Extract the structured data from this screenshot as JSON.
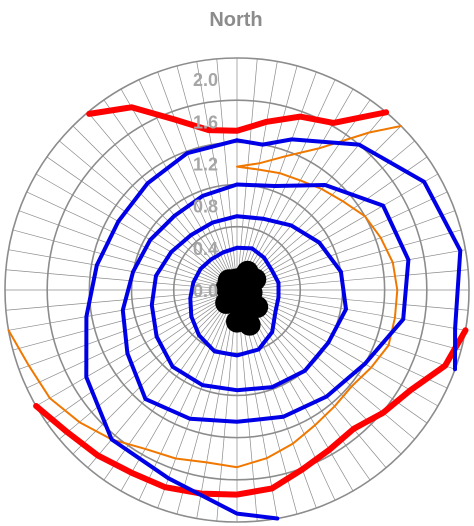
{
  "chart_data": {
    "type": "polar-contour",
    "direction_label": "North",
    "radial_axis": {
      "ticks": [
        0.0,
        0.4,
        0.8,
        1.2,
        1.6,
        2.0
      ],
      "tick_labels": [
        "0.0",
        "0.4",
        "0.8",
        "1.2",
        "1.6",
        "2.0"
      ],
      "gridline_radii": [
        0.2,
        0.6,
        1.0,
        1.4,
        1.8,
        2.2
      ],
      "range": [
        0.0,
        2.2
      ]
    },
    "angular_spokes": 72,
    "grid": true,
    "colors": {
      "grid": "#8c8c8c",
      "red": "#ff0000",
      "orange": "#f07800",
      "blue": "#0000e6",
      "black": "#000000"
    },
    "series": [
      {
        "color": "red",
        "width": 6,
        "points": [
          [
            -120,
            2.2
          ],
          [
            -130,
            2.1
          ],
          [
            -140,
            2.05
          ],
          [
            -150,
            2.0
          ],
          [
            -160,
            1.99
          ],
          [
            -170,
            1.96
          ],
          [
            -180,
            1.94
          ],
          [
            -190,
            1.91
          ],
          [
            -200,
            1.81
          ],
          [
            -210,
            1.75
          ],
          [
            -220,
            1.72
          ],
          [
            -230,
            1.81
          ],
          [
            -240,
            1.9
          ],
          [
            -250,
            2.1
          ],
          [
            -260,
            2.2
          ]
        ]
      },
      {
        "color": "red",
        "width": 6,
        "points": [
          [
            -40,
            2.18
          ],
          [
            -30,
            2.0
          ],
          [
            -20,
            1.72
          ],
          [
            -10,
            1.54
          ],
          [
            0,
            1.51
          ],
          [
            10,
            1.62
          ],
          [
            20,
            1.75
          ],
          [
            30,
            1.83
          ],
          [
            40,
            2.2
          ]
        ]
      },
      {
        "color": "orange",
        "width": 2,
        "points": [
          [
            -100,
            2.2
          ],
          [
            -110,
            2.1
          ],
          [
            -120,
            2.05
          ],
          [
            -130,
            1.95
          ],
          [
            -140,
            1.85
          ],
          [
            -150,
            1.74
          ],
          [
            -160,
            1.7
          ],
          [
            -170,
            1.66
          ],
          [
            -180,
            1.68
          ],
          [
            -190,
            1.62
          ],
          [
            -200,
            1.55
          ],
          [
            -210,
            1.48
          ],
          [
            -220,
            1.44
          ],
          [
            -230,
            1.42
          ],
          [
            -240,
            1.47
          ],
          [
            -250,
            1.53
          ],
          [
            -260,
            1.52
          ],
          [
            -270,
            1.52
          ],
          [
            -280,
            1.5
          ],
          [
            -290,
            1.45
          ],
          [
            -300,
            1.4
          ],
          [
            -310,
            1.31
          ],
          [
            -320,
            1.25
          ],
          [
            -330,
            1.2
          ],
          [
            -340,
            1.18
          ],
          [
            -350,
            1.16
          ],
          [
            0,
            1.17
          ],
          [
            10,
            1.22
          ],
          [
            20,
            1.35
          ],
          [
            30,
            1.55
          ],
          [
            40,
            1.95
          ],
          [
            45,
            2.2
          ]
        ]
      },
      {
        "color": "blue",
        "width": 4,
        "points": [
          [
            0,
            0.4
          ],
          [
            20,
            0.42
          ],
          [
            40,
            0.4
          ],
          [
            60,
            0.38
          ],
          [
            80,
            0.4
          ],
          [
            100,
            0.4
          ],
          [
            120,
            0.42
          ],
          [
            140,
            0.52
          ],
          [
            160,
            0.6
          ],
          [
            180,
            0.62
          ],
          [
            200,
            0.62
          ],
          [
            220,
            0.56
          ],
          [
            240,
            0.5
          ],
          [
            260,
            0.45
          ],
          [
            280,
            0.42
          ],
          [
            300,
            0.4
          ],
          [
            320,
            0.38
          ],
          [
            340,
            0.38
          ],
          [
            360,
            0.4
          ]
        ]
      },
      {
        "color": "blue",
        "width": 4,
        "points": [
          [
            0,
            0.7
          ],
          [
            20,
            0.72
          ],
          [
            40,
            0.8
          ],
          [
            60,
            0.9
          ],
          [
            80,
            1.0
          ],
          [
            100,
            1.05
          ],
          [
            120,
            1.0
          ],
          [
            140,
            1.0
          ],
          [
            160,
            0.98
          ],
          [
            180,
            0.95
          ],
          [
            200,
            0.96
          ],
          [
            220,
            0.95
          ],
          [
            240,
            0.88
          ],
          [
            260,
            0.82
          ],
          [
            280,
            0.78
          ],
          [
            300,
            0.72
          ],
          [
            320,
            0.68
          ],
          [
            340,
            0.68
          ],
          [
            360,
            0.7
          ]
        ]
      },
      {
        "color": "blue",
        "width": 4,
        "points": [
          [
            0,
            1.0
          ],
          [
            20,
            1.05
          ],
          [
            40,
            1.3
          ],
          [
            60,
            1.6
          ],
          [
            80,
            1.65
          ],
          [
            100,
            1.6
          ],
          [
            120,
            1.4
          ],
          [
            140,
            1.32
          ],
          [
            160,
            1.28
          ],
          [
            180,
            1.25
          ],
          [
            200,
            1.3
          ],
          [
            220,
            1.35
          ],
          [
            240,
            1.2
          ],
          [
            260,
            1.1
          ],
          [
            280,
            1.0
          ],
          [
            300,
            0.95
          ],
          [
            320,
            0.92
          ],
          [
            340,
            0.95
          ],
          [
            360,
            1.0
          ]
        ]
      },
      {
        "color": "blue",
        "width": 4,
        "points": [
          [
            0,
            1.42
          ],
          [
            10,
            1.4
          ],
          [
            20,
            1.52
          ],
          [
            40,
            1.8
          ],
          [
            60,
            2.05
          ],
          [
            80,
            2.15
          ],
          [
            100,
            2.1
          ],
          [
            110,
            2.2
          ]
        ]
      },
      {
        "color": "blue",
        "width": 4,
        "points": [
          [
            170,
            2.2
          ],
          [
            180,
            2.12
          ],
          [
            200,
            1.9
          ],
          [
            220,
            1.85
          ],
          [
            240,
            1.65
          ],
          [
            260,
            1.45
          ],
          [
            280,
            1.35
          ],
          [
            300,
            1.3
          ],
          [
            320,
            1.32
          ],
          [
            340,
            1.38
          ],
          [
            360,
            1.42
          ]
        ]
      },
      {
        "color": "black",
        "type": "scatter",
        "marker_radius": 11,
        "points": [
          [
            0,
            0.1
          ],
          [
            40,
            0.15
          ],
          [
            80,
            0.1
          ],
          [
            120,
            0.12
          ],
          [
            160,
            0.35
          ],
          [
            170,
            0.28
          ],
          [
            200,
            0.12
          ],
          [
            240,
            0.08
          ],
          [
            280,
            0.1
          ],
          [
            320,
            0.12
          ],
          [
            20,
            0.12
          ],
          [
            60,
            0.08
          ],
          [
            100,
            0.14
          ],
          [
            140,
            0.18
          ],
          [
            180,
            0.3
          ],
          [
            220,
            0.16
          ],
          [
            260,
            0.06
          ],
          [
            300,
            0.05
          ],
          [
            340,
            0.1
          ],
          [
            30,
            0.2
          ],
          [
            60,
            0.2
          ],
          [
            130,
            0.25
          ]
        ]
      }
    ]
  }
}
